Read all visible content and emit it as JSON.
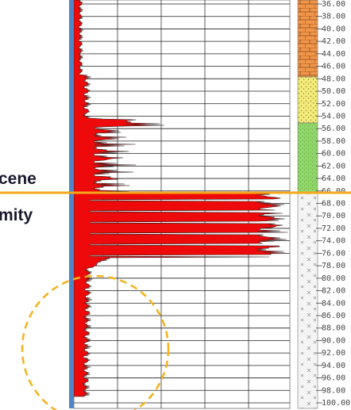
{
  "side_labels": [
    "cene",
    "mity"
  ],
  "depth_labels": [
    "36.00",
    "38.00",
    "40.00",
    "42.00",
    "44.00",
    "46.00",
    "48.00",
    "50.00",
    "52.00",
    "54.00",
    "56.00",
    "58.00",
    "60.00",
    "62.00",
    "64.00",
    "66.00",
    "68.00",
    "70.00",
    "72.00",
    "74.00",
    "76.00",
    "78.00",
    "80.00",
    "82.00",
    "84.00",
    "86.00",
    "88.00",
    "90.00",
    "92.00",
    "94.00",
    "96.00",
    "98.00",
    "100.00"
  ]
}
